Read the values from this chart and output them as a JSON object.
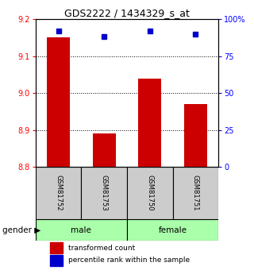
{
  "title": "GDS2222 / 1434329_s_at",
  "samples": [
    "GSM81752",
    "GSM81753",
    "GSM81750",
    "GSM81751"
  ],
  "red_values": [
    9.15,
    8.89,
    9.04,
    8.97
  ],
  "blue_values": [
    92,
    88,
    92,
    90
  ],
  "ylim_left": [
    8.8,
    9.2
  ],
  "ylim_right": [
    0,
    100
  ],
  "yticks_left": [
    8.8,
    8.9,
    9.0,
    9.1,
    9.2
  ],
  "yticks_right": [
    0,
    25,
    50,
    75,
    100
  ],
  "ytick_labels_right": [
    "0",
    "25",
    "50",
    "75",
    "100%"
  ],
  "bar_color": "#cc0000",
  "dot_color": "#0000cc",
  "bar_width": 0.5,
  "sample_box_color": "#cccccc",
  "baseline": 8.8,
  "legend_items": [
    {
      "color": "#cc0000",
      "label": "transformed count"
    },
    {
      "color": "#0000cc",
      "label": "percentile rank within the sample"
    }
  ]
}
